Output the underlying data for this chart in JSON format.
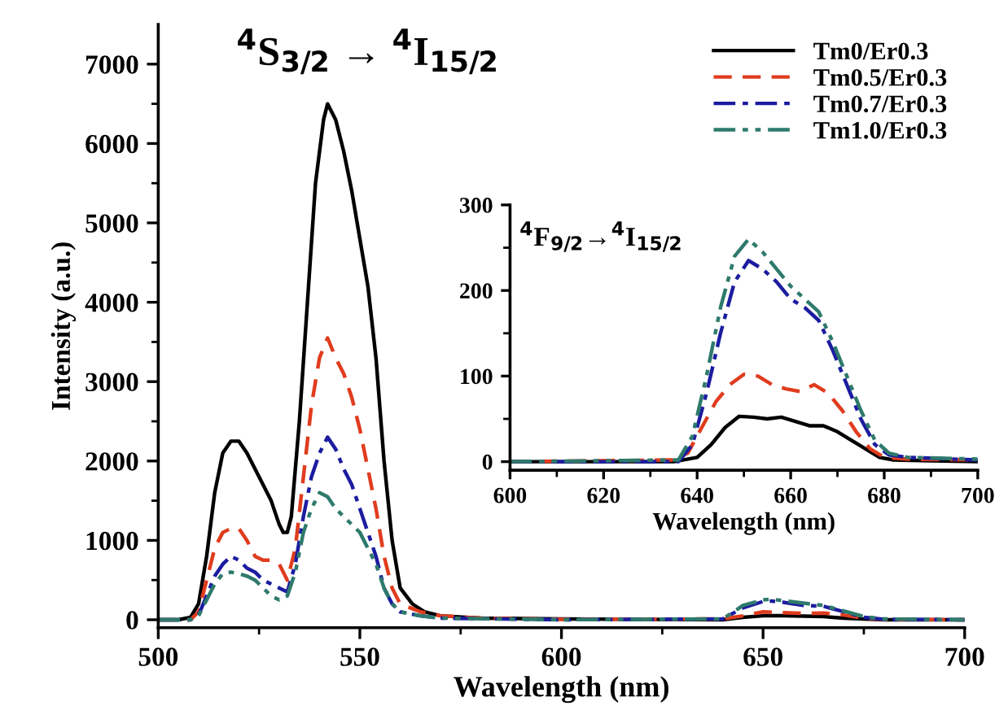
{
  "chart_data": [
    {
      "type": "line",
      "xlabel": "Wavelength (nm)",
      "ylabel": "Intensity (a.u.)",
      "annotations": [
        "$^{4}$S$_{3/2}$ → $^{4}$I$_{15/2}$"
      ],
      "xlim": [
        500,
        700
      ],
      "ylim": [
        -100,
        7500
      ],
      "xticks": [
        500,
        550,
        600,
        650,
        700
      ],
      "yticks": [
        0,
        1000,
        2000,
        3000,
        4000,
        5000,
        6000,
        7000
      ],
      "grid": false,
      "legend": "top right",
      "marker": "none",
      "series": [
        {
          "name": "Tm0/Er0.3",
          "color": "#000000",
          "line_style": "solid",
          "x": [
            500,
            505,
            508,
            510,
            512,
            514,
            516,
            518,
            520,
            522,
            524,
            526,
            528,
            530,
            531,
            532,
            533,
            535,
            537,
            539,
            541,
            542,
            544,
            546,
            548,
            550,
            552,
            554,
            556,
            558,
            560,
            563,
            566,
            570,
            580,
            600,
            640,
            645,
            650,
            655,
            660,
            665,
            670,
            680,
            700
          ],
          "values": [
            0,
            0,
            30,
            200,
            800,
            1600,
            2100,
            2250,
            2250,
            2100,
            1900,
            1700,
            1500,
            1200,
            1100,
            1100,
            1300,
            2500,
            4000,
            5500,
            6300,
            6500,
            6300,
            5900,
            5400,
            4800,
            4200,
            3300,
            2000,
            1000,
            400,
            200,
            100,
            50,
            20,
            10,
            0,
            30,
            50,
            50,
            45,
            40,
            20,
            0,
            0
          ]
        },
        {
          "name": "Tm0.5/Er0.3",
          "color": "#e03c1e",
          "line_style": "dashed",
          "x": [
            500,
            508,
            510,
            512,
            514,
            516,
            518,
            520,
            522,
            524,
            526,
            528,
            530,
            532,
            534,
            536,
            538,
            540,
            542,
            544,
            546,
            548,
            550,
            552,
            554,
            556,
            558,
            560,
            565,
            570,
            580,
            600,
            640,
            645,
            650,
            655,
            660,
            665,
            670,
            675,
            680,
            700
          ],
          "values": [
            0,
            0,
            100,
            500,
            900,
            1100,
            1150,
            1150,
            1000,
            800,
            750,
            750,
            700,
            500,
            900,
            1800,
            2700,
            3300,
            3550,
            3300,
            3100,
            2800,
            2400,
            1900,
            1400,
            800,
            400,
            200,
            100,
            50,
            20,
            5,
            10,
            50,
            100,
            90,
            80,
            85,
            60,
            20,
            5,
            0
          ]
        },
        {
          "name": "Tm0.7/Er0.3",
          "color": "#1c1ca0",
          "line_style": "dashdot",
          "x": [
            500,
            508,
            510,
            512,
            514,
            516,
            518,
            520,
            522,
            524,
            526,
            528,
            530,
            532,
            534,
            536,
            538,
            540,
            542,
            544,
            546,
            548,
            550,
            552,
            554,
            556,
            558,
            560,
            565,
            570,
            600,
            640,
            645,
            650,
            652,
            655,
            660,
            665,
            670,
            675,
            680,
            700
          ],
          "values": [
            0,
            0,
            60,
            300,
            550,
            700,
            800,
            750,
            650,
            600,
            500,
            450,
            400,
            350,
            700,
            1300,
            1800,
            2100,
            2300,
            2150,
            1900,
            1700,
            1400,
            1100,
            800,
            400,
            200,
            100,
            50,
            20,
            0,
            10,
            150,
            230,
            235,
            220,
            180,
            170,
            100,
            30,
            5,
            0
          ]
        },
        {
          "name": "Tm1.0/Er0.3",
          "color": "#2e7a6c",
          "line_style": "dashdotdot",
          "x": [
            500,
            508,
            510,
            512,
            514,
            516,
            518,
            520,
            522,
            524,
            526,
            528,
            530,
            532,
            534,
            536,
            538,
            540,
            542,
            544,
            546,
            548,
            550,
            552,
            554,
            556,
            558,
            560,
            565,
            570,
            600,
            640,
            645,
            650,
            652,
            655,
            660,
            665,
            670,
            675,
            680,
            700
          ],
          "values": [
            0,
            0,
            50,
            250,
            450,
            580,
            600,
            580,
            550,
            500,
            400,
            300,
            250,
            300,
            600,
            1100,
            1400,
            1600,
            1550,
            1400,
            1300,
            1200,
            1100,
            900,
            700,
            400,
            200,
            100,
            50,
            20,
            0,
            10,
            180,
            250,
            260,
            240,
            210,
            180,
            110,
            40,
            10,
            0
          ]
        }
      ]
    },
    {
      "type": "line",
      "xlabel": "Wavelength (nm)",
      "annotations": [
        "$^{4}$F$_{9/2}$→$^{4}$I$_{15/2}$"
      ],
      "xlim": [
        600,
        700
      ],
      "ylim": [
        -10,
        300
      ],
      "xticks": [
        600,
        620,
        640,
        660,
        680,
        700
      ],
      "yticks": [
        0,
        100,
        200,
        300
      ],
      "grid": false,
      "legend": false,
      "marker": "none",
      "series": [
        {
          "color": "#000000",
          "line_style": "solid",
          "x": [
            600,
            635,
            640,
            643,
            646,
            649,
            652,
            655,
            658,
            661,
            664,
            667,
            670,
            673,
            676,
            679,
            682,
            690,
            700
          ],
          "values": [
            0,
            0,
            5,
            20,
            40,
            53,
            52,
            50,
            52,
            47,
            42,
            42,
            35,
            25,
            15,
            5,
            2,
            1,
            0
          ]
        },
        {
          "color": "#e03c1e",
          "line_style": "dashed",
          "x": [
            600,
            635,
            638,
            641,
            644,
            647,
            650,
            653,
            656,
            659,
            662,
            665,
            668,
            671,
            674,
            677,
            680,
            685,
            700
          ],
          "values": [
            0,
            2,
            10,
            40,
            70,
            90,
            102,
            100,
            90,
            85,
            82,
            90,
            80,
            60,
            35,
            15,
            5,
            3,
            2
          ]
        },
        {
          "color": "#1c1ca0",
          "line_style": "dashdot",
          "x": [
            600,
            636,
            639,
            642,
            645,
            648,
            651,
            654,
            657,
            660,
            663,
            666,
            669,
            672,
            675,
            678,
            681,
            685,
            700
          ],
          "values": [
            0,
            0,
            20,
            80,
            150,
            210,
            235,
            225,
            210,
            190,
            180,
            165,
            130,
            90,
            50,
            20,
            8,
            5,
            2
          ]
        },
        {
          "color": "#2e7a6c",
          "line_style": "dashdotdot",
          "x": [
            600,
            636,
            639,
            642,
            645,
            648,
            651,
            654,
            657,
            660,
            663,
            666,
            669,
            672,
            675,
            678,
            681,
            685,
            700
          ],
          "values": [
            0,
            2,
            30,
            100,
            180,
            240,
            260,
            245,
            225,
            205,
            190,
            175,
            140,
            100,
            60,
            25,
            10,
            5,
            3
          ]
        }
      ]
    }
  ]
}
